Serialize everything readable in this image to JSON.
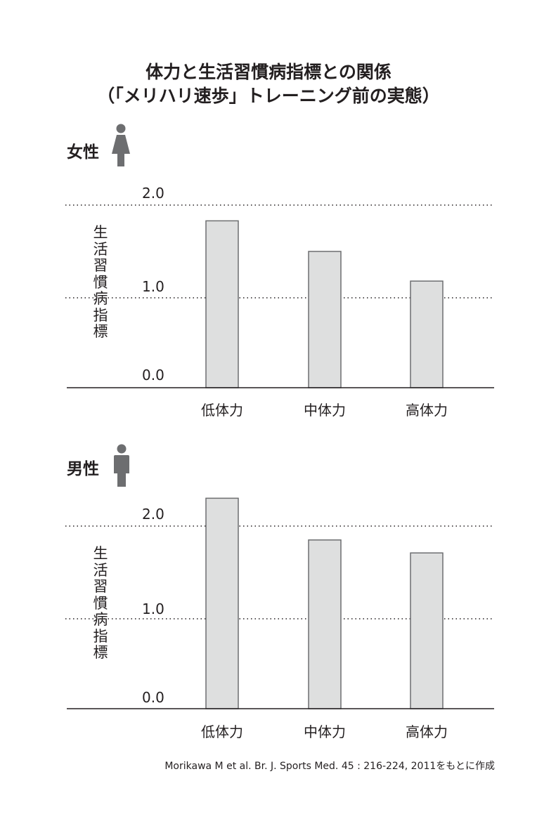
{
  "title_line1": "体力と生活習慣病指標との関係",
  "title_line2": "（「メリハリ速歩」トレーニング前の実態）",
  "footnote": "Morikawa M et al. Br. J. Sports Med. 45 : 216-224, 2011をもとに作成",
  "colors": {
    "bar_fill": "#dedfdf",
    "bar_stroke": "#6d6e70",
    "icon": "#6d6e70",
    "text": "#231f20"
  },
  "chart_data": [
    {
      "type": "bar",
      "panel_label": "女性",
      "icon": "female-person-icon",
      "ylabel": "生活習慣病指標",
      "yticks": [
        "0.0",
        "1.0",
        "2.0"
      ],
      "ylim": [
        0,
        2.0
      ],
      "grid": "dotted at 1.0 and 2.0",
      "categories": [
        "低体力",
        "中体力",
        "高体力"
      ],
      "values": [
        1.8,
        1.47,
        1.15
      ]
    },
    {
      "type": "bar",
      "panel_label": "男性",
      "icon": "male-person-icon",
      "ylabel": "生活習慣病指標",
      "yticks": [
        "0.0",
        "1.0",
        "2.0"
      ],
      "ylim": [
        0,
        2.0
      ],
      "grid": "dotted at 1.0 and 2.0",
      "categories": [
        "低体力",
        "中体力",
        "高体力"
      ],
      "values": [
        2.27,
        1.82,
        1.68
      ]
    }
  ]
}
